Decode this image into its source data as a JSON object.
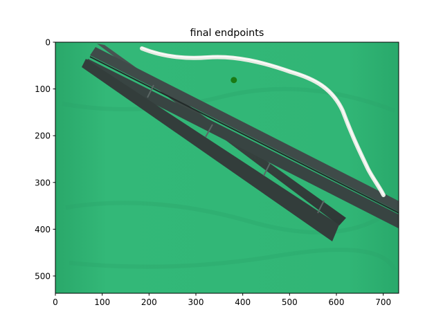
{
  "chart_data": {
    "type": "scatter",
    "title": "final endpoints",
    "xlabel": "",
    "ylabel": "",
    "xlim": [
      0,
      733
    ],
    "ylim": [
      537,
      0
    ],
    "y_axis_inverted": true,
    "grid": false,
    "xticks": [
      0,
      100,
      200,
      300,
      400,
      500,
      600,
      700
    ],
    "yticks": [
      0,
      100,
      200,
      300,
      400,
      500
    ],
    "background": "photo of a green tabletop with two dark grey rails and a white rope",
    "series": [
      {
        "points": [
          [
            381,
            81
          ]
        ],
        "color": "#1a7a14"
      }
    ]
  },
  "colors": {
    "table_green": "#2fb576",
    "rail_dark": "#3c4a48",
    "rope_white": "#f4f6f0",
    "marker_green": "#1a7a14"
  }
}
